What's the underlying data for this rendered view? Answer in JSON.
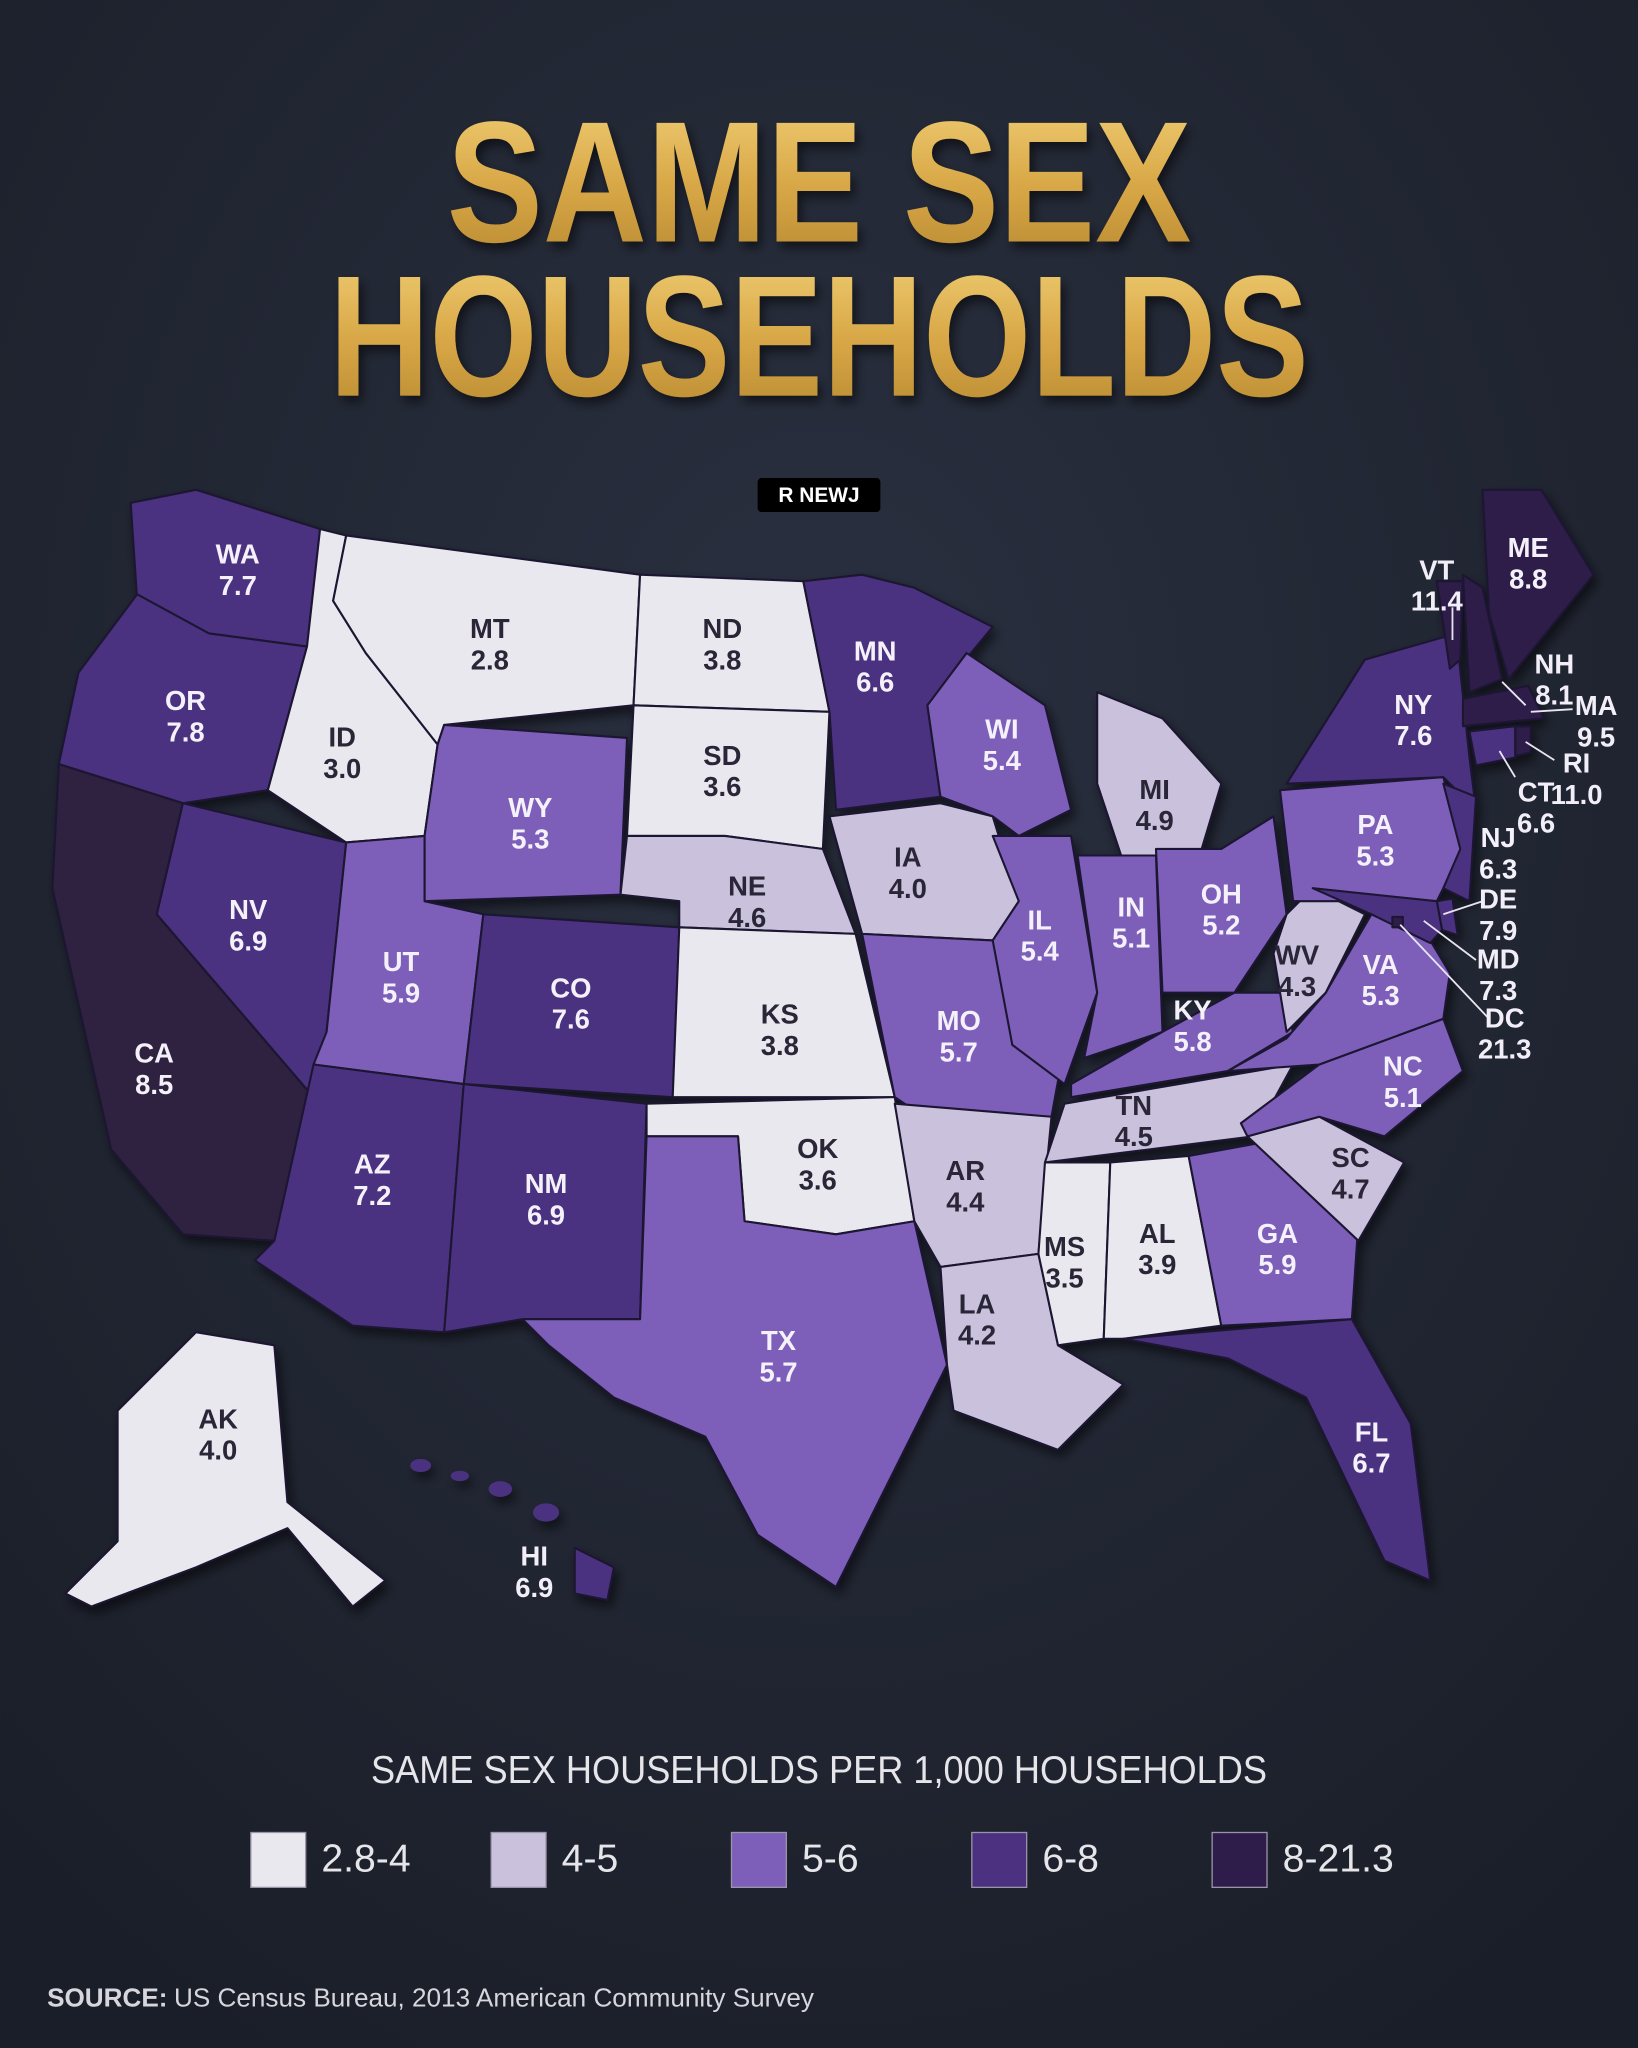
{
  "header": {
    "title_lines": [
      "SAME SEX",
      "HOUSEHOLDS"
    ],
    "brand": "R NEWJ"
  },
  "states": [
    {
      "abbr": "WA",
      "value": 7.7,
      "color": "#4b3180"
    },
    {
      "abbr": "OR",
      "value": 7.8,
      "color": "#4b3180"
    },
    {
      "abbr": "CA",
      "value": 8.5,
      "color": "#2e2040"
    },
    {
      "abbr": "NV",
      "value": 6.9,
      "color": "#4b3180"
    },
    {
      "abbr": "ID",
      "value": 3.0,
      "value_label": "3.0",
      "color": "#eae8ef"
    },
    {
      "abbr": "MT",
      "value": 2.8,
      "color": "#eae8ef"
    },
    {
      "abbr": "WY",
      "value": 5.3,
      "color": "#7d5fba"
    },
    {
      "abbr": "UT",
      "value": 5.9,
      "color": "#7d5fba"
    },
    {
      "abbr": "CO",
      "value": 7.6,
      "color": "#4b3180"
    },
    {
      "abbr": "AZ",
      "value": 7.2,
      "color": "#4b3180"
    },
    {
      "abbr": "NM",
      "value": 6.9,
      "color": "#4b3180"
    },
    {
      "abbr": "ND",
      "value": 3.8,
      "color": "#eae8ef"
    },
    {
      "abbr": "SD",
      "value": 3.6,
      "color": "#eae8ef"
    },
    {
      "abbr": "NE",
      "value": 4.6,
      "color": "#cac2dd"
    },
    {
      "abbr": "KS",
      "value": 3.8,
      "color": "#eae8ef"
    },
    {
      "abbr": "OK",
      "value": 3.6,
      "color": "#eae8ef"
    },
    {
      "abbr": "TX",
      "value": 5.7,
      "color": "#7d5fba"
    },
    {
      "abbr": "MN",
      "value": 6.6,
      "color": "#4b3180"
    },
    {
      "abbr": "IA",
      "value": 4.0,
      "value_label": "4.0",
      "color": "#cac2dd"
    },
    {
      "abbr": "MO",
      "value": 5.7,
      "color": "#7d5fba"
    },
    {
      "abbr": "AR",
      "value": 4.4,
      "color": "#cac2dd"
    },
    {
      "abbr": "LA",
      "value": 4.2,
      "color": "#cac2dd"
    },
    {
      "abbr": "WI",
      "value": 5.4,
      "color": "#7d5fba"
    },
    {
      "abbr": "IL",
      "value": 5.4,
      "color": "#7d5fba"
    },
    {
      "abbr": "MI",
      "value": 4.9,
      "color": "#cac2dd"
    },
    {
      "abbr": "IN",
      "value": 5.1,
      "color": "#7d5fba"
    },
    {
      "abbr": "OH",
      "value": 5.2,
      "color": "#7d5fba"
    },
    {
      "abbr": "KY",
      "value": 5.8,
      "color": "#7d5fba"
    },
    {
      "abbr": "TN",
      "value": 4.5,
      "color": "#cac2dd"
    },
    {
      "abbr": "MS",
      "value": 3.5,
      "color": "#eae8ef"
    },
    {
      "abbr": "AL",
      "value": 3.9,
      "color": "#eae8ef"
    },
    {
      "abbr": "GA",
      "value": 5.9,
      "color": "#7d5fba"
    },
    {
      "abbr": "FL",
      "value": 6.7,
      "color": "#4b3180"
    },
    {
      "abbr": "SC",
      "value": 4.7,
      "color": "#cac2dd"
    },
    {
      "abbr": "NC",
      "value": 5.1,
      "color": "#7d5fba"
    },
    {
      "abbr": "VA",
      "value": 5.3,
      "color": "#7d5fba"
    },
    {
      "abbr": "WV",
      "value": 4.3,
      "color": "#cac2dd"
    },
    {
      "abbr": "PA",
      "value": 5.3,
      "color": "#7d5fba"
    },
    {
      "abbr": "NY",
      "value": 7.6,
      "color": "#4b3180"
    },
    {
      "abbr": "NJ",
      "value": 6.3,
      "color": "#4b3180"
    },
    {
      "abbr": "DE",
      "value": 7.9,
      "color": "#4b3180"
    },
    {
      "abbr": "MD",
      "value": 7.3,
      "color": "#4b3180"
    },
    {
      "abbr": "DC",
      "value": 21.3,
      "color": "#2e1c4a"
    },
    {
      "abbr": "VT",
      "value": 11.4,
      "color": "#2e1c4a"
    },
    {
      "abbr": "NH",
      "value": 8.1,
      "color": "#2e1c4a"
    },
    {
      "abbr": "ME",
      "value": 8.8,
      "color": "#2e1c4a"
    },
    {
      "abbr": "MA",
      "value": 9.5,
      "color": "#2e1c4a"
    },
    {
      "abbr": "RI",
      "value": 11.0,
      "value_label": "11.0",
      "color": "#2e1c4a"
    },
    {
      "abbr": "CT",
      "value": 6.6,
      "color": "#4b3180"
    },
    {
      "abbr": "AK",
      "value": 4.0,
      "value_label": "4.0",
      "color": "#eae8ef"
    },
    {
      "abbr": "HI",
      "value": 6.9,
      "color": "#4b3180"
    }
  ],
  "legend": {
    "title": "SAME SEX HOUSEHOLDS PER 1,000 HOUSEHOLDS",
    "items": [
      {
        "label": "2.8-4",
        "color": "#eae8ef"
      },
      {
        "label": "4-5",
        "color": "#cac2dd"
      },
      {
        "label": "5-6",
        "color": "#7d5fba"
      },
      {
        "label": "6-8",
        "color": "#4b3180"
      },
      {
        "label": "8-21.3",
        "color": "#2e1c4a"
      }
    ]
  },
  "source": {
    "label": "SOURCE:",
    "text": "US Census Bureau, 2013 American Community Survey"
  }
}
